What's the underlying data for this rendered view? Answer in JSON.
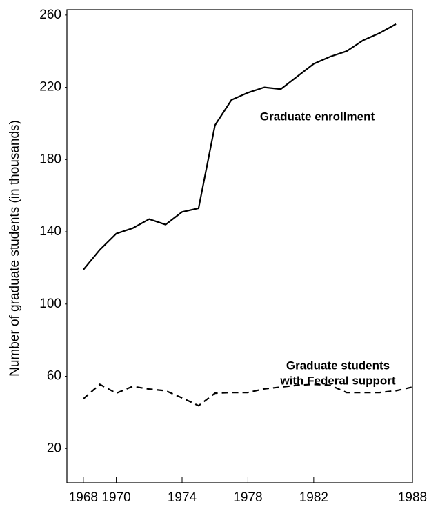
{
  "chart_data": {
    "type": "line",
    "y_label": "Number of graduate students (in thousands)",
    "x": [
      1968,
      1969,
      1970,
      1971,
      1972,
      1973,
      1974,
      1975,
      1976,
      1977,
      1978,
      1979,
      1980,
      1981,
      1982,
      1983,
      1984,
      1985,
      1986,
      1987,
      1988
    ],
    "series": [
      {
        "name": "Graduate enrollment",
        "color": "#000000",
        "dash": false,
        "values": [
          119,
          130,
          139,
          142,
          147,
          144,
          151,
          153,
          199,
          213,
          217,
          220,
          219,
          226,
          233,
          237,
          240,
          246,
          250,
          255,
          null
        ]
      },
      {
        "name": "Graduate students with Federal support",
        "color": "#000000",
        "dash": true,
        "values": [
          47.5,
          55.5,
          50.6,
          54.4,
          52.9,
          52,
          48,
          43.7,
          50.6,
          51,
          51,
          53,
          54,
          55,
          55.5,
          55,
          51,
          51,
          51,
          52,
          54
        ]
      }
    ],
    "annotations": [
      "Graduate enrollment",
      "Graduate students",
      "with Federal support"
    ],
    "xlim": [
      1967,
      1988
    ],
    "xticks": [
      1968,
      1970,
      1974,
      1978,
      1982,
      1988
    ],
    "ylim": [
      1,
      263
    ],
    "yticks": [
      20,
      60,
      100,
      140,
      180,
      220,
      260
    ]
  }
}
